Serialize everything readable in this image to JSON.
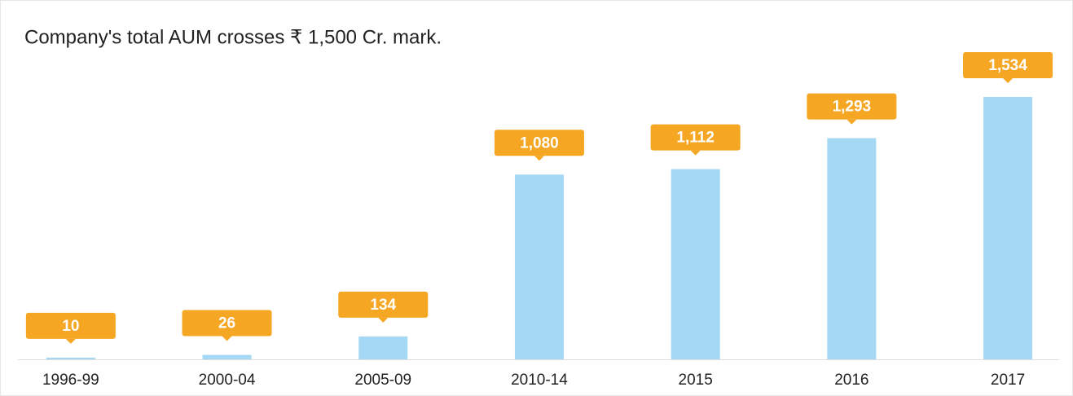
{
  "chart_data": {
    "type": "bar",
    "title": "Company's total AUM crosses ₹ 1,500 Cr. mark.",
    "categories": [
      "1996-99",
      "2000-04",
      "2005-09",
      "2010-14",
      "2015",
      "2016",
      "2017"
    ],
    "values": [
      10,
      26,
      134,
      1080,
      1112,
      1293,
      1534
    ],
    "value_labels": [
      "10",
      "26",
      "134",
      "1,080",
      "1,112",
      "1,293",
      "1,534"
    ],
    "color": "#a4d8f4",
    "label_color": "#f5a623"
  }
}
